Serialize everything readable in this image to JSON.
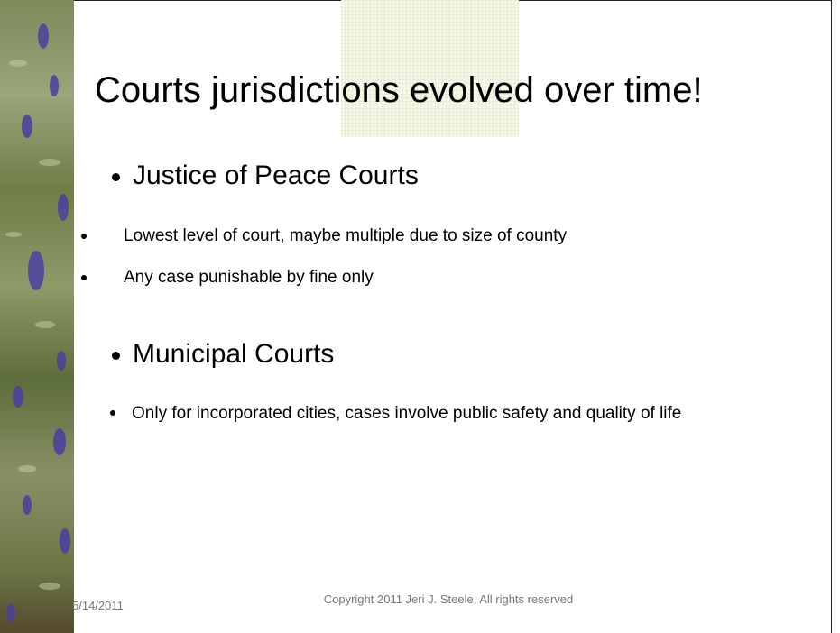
{
  "slide": {
    "title": "Courts jurisdictions evolved over time!",
    "items": [
      {
        "text": "Justice of Peace Courts"
      },
      {
        "text": "Lowest level of court, maybe multiple due to size of county"
      },
      {
        "text": "Any case punishable by fine only"
      },
      {
        "text": "Municipal Courts"
      },
      {
        "text": "Only for incorporated cities, cases involve public safety and quality of life"
      }
    ],
    "footer": {
      "date": "5/14/2011",
      "copyright": "Copyright 2011 Jeri J. Steele, All rights reserved"
    }
  }
}
